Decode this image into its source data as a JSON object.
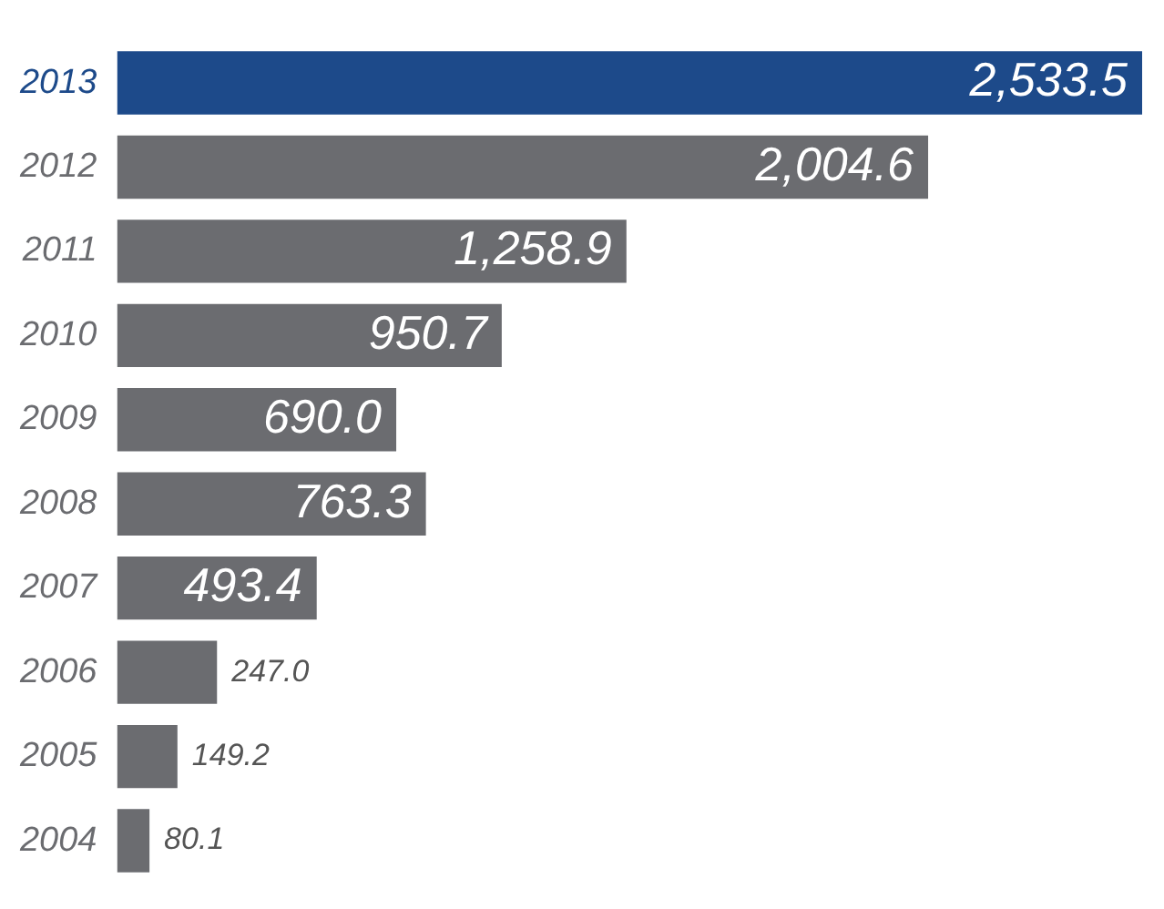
{
  "chart_data": {
    "type": "bar",
    "orientation": "horizontal",
    "legend": false,
    "categories": [
      "2013",
      "2012",
      "2011",
      "2010",
      "2009",
      "2008",
      "2007",
      "2006",
      "2005",
      "2004"
    ],
    "values": [
      2533.5,
      2004.6,
      1258.9,
      950.7,
      690.0,
      763.3,
      493.4,
      247.0,
      149.2,
      80.1
    ],
    "value_labels": [
      "2,533.5",
      "2,004.6",
      "1,258.9",
      "950.7",
      "690.0",
      "763.3",
      "493.4",
      "247.0",
      "149.2",
      "80.1"
    ],
    "colors": [
      "#1d4a8a",
      "#6b6c70",
      "#6b6c70",
      "#6b6c70",
      "#6b6c70",
      "#6b6c70",
      "#6b6c70",
      "#6b6c70",
      "#6b6c70",
      "#6b6c70"
    ]
  }
}
